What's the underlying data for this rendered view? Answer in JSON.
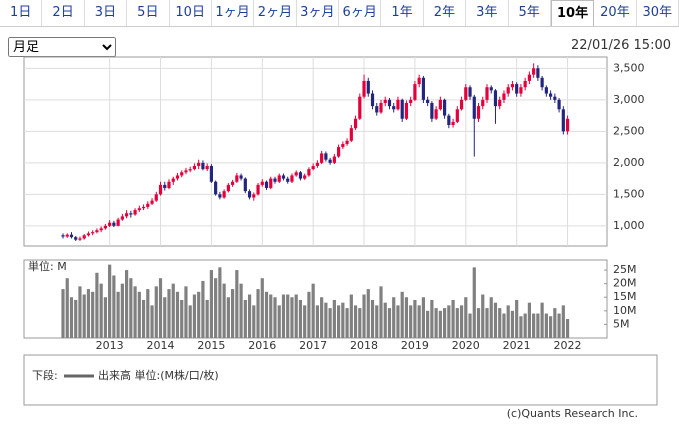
{
  "tabs": [
    "1日",
    "2日",
    "3日",
    "5日",
    "10日",
    "1ヶ月",
    "2ヶ月",
    "3ヶ月",
    "6ヶ月",
    "1年",
    "2年",
    "3年",
    "5年",
    "10年",
    "20年",
    "30年"
  ],
  "selected_tab": 13,
  "period_select": "月足",
  "timestamp": "22/01/26 15:00",
  "legend": {
    "prefix": "下段:",
    "label": "出来高 単位:(M株/口/枚)"
  },
  "copyright": "(c)Quants Research Inc.",
  "chart_data": [
    {
      "type": "candlestick",
      "up_color": "#e4003a",
      "down_color": "#23267e",
      "grid": true,
      "ylim": [
        680,
        3680
      ],
      "yticks": [
        {
          "value": 1000,
          "label": "1,000"
        },
        {
          "value": 1500,
          "label": "1,500"
        },
        {
          "value": 2000,
          "label": "2,000"
        },
        {
          "value": 2500,
          "label": "2,500"
        },
        {
          "value": 3000,
          "label": "3,000"
        },
        {
          "value": 3500,
          "label": "3,500"
        }
      ],
      "ohlc": [
        [
          850,
          880,
          800,
          830
        ],
        [
          830,
          880,
          810,
          860
        ],
        [
          860,
          900,
          800,
          820
        ],
        [
          820,
          840,
          760,
          780
        ],
        [
          780,
          830,
          760,
          800
        ],
        [
          800,
          870,
          780,
          850
        ],
        [
          850,
          910,
          830,
          880
        ],
        [
          880,
          930,
          850,
          900
        ],
        [
          900,
          960,
          880,
          930
        ],
        [
          930,
          990,
          900,
          960
        ],
        [
          960,
          1030,
          940,
          1000
        ],
        [
          1000,
          1090,
          980,
          1050
        ],
        [
          1050,
          1080,
          980,
          1000
        ],
        [
          1000,
          1130,
          990,
          1100
        ],
        [
          1100,
          1190,
          1080,
          1150
        ],
        [
          1150,
          1250,
          1120,
          1200
        ],
        [
          1200,
          1240,
          1130,
          1180
        ],
        [
          1180,
          1280,
          1160,
          1250
        ],
        [
          1250,
          1320,
          1220,
          1280
        ],
        [
          1280,
          1340,
          1250,
          1300
        ],
        [
          1300,
          1390,
          1270,
          1350
        ],
        [
          1350,
          1440,
          1330,
          1400
        ],
        [
          1400,
          1540,
          1380,
          1500
        ],
        [
          1500,
          1700,
          1480,
          1650
        ],
        [
          1650,
          1700,
          1560,
          1600
        ],
        [
          1600,
          1740,
          1580,
          1700
        ],
        [
          1700,
          1780,
          1650,
          1750
        ],
        [
          1750,
          1840,
          1720,
          1800
        ],
        [
          1800,
          1880,
          1770,
          1850
        ],
        [
          1850,
          1920,
          1820,
          1880
        ],
        [
          1880,
          1940,
          1850,
          1900
        ],
        [
          1900,
          1990,
          1880,
          1950
        ],
        [
          1950,
          2050,
          1900,
          2000
        ],
        [
          2000,
          2040,
          1880,
          1900
        ],
        [
          1900,
          1990,
          1870,
          1950
        ],
        [
          1950,
          1980,
          1680,
          1700
        ],
        [
          1700,
          1720,
          1480,
          1500
        ],
        [
          1500,
          1540,
          1420,
          1450
        ],
        [
          1450,
          1580,
          1430,
          1550
        ],
        [
          1550,
          1680,
          1530,
          1650
        ],
        [
          1650,
          1730,
          1620,
          1700
        ],
        [
          1700,
          1840,
          1680,
          1800
        ],
        [
          1800,
          1830,
          1720,
          1750
        ],
        [
          1750,
          1770,
          1520,
          1550
        ],
        [
          1550,
          1580,
          1420,
          1450
        ],
        [
          1450,
          1530,
          1400,
          1500
        ],
        [
          1500,
          1680,
          1480,
          1650
        ],
        [
          1650,
          1740,
          1620,
          1700
        ],
        [
          1700,
          1720,
          1570,
          1600
        ],
        [
          1600,
          1780,
          1580,
          1750
        ],
        [
          1750,
          1780,
          1670,
          1700
        ],
        [
          1700,
          1830,
          1680,
          1800
        ],
        [
          1800,
          1830,
          1720,
          1750
        ],
        [
          1750,
          1780,
          1670,
          1700
        ],
        [
          1700,
          1830,
          1680,
          1800
        ],
        [
          1800,
          1880,
          1780,
          1850
        ],
        [
          1850,
          1870,
          1720,
          1750
        ],
        [
          1750,
          1830,
          1730,
          1800
        ],
        [
          1800,
          1930,
          1780,
          1900
        ],
        [
          1900,
          1990,
          1880,
          1950
        ],
        [
          1950,
          2040,
          1920,
          2000
        ],
        [
          2000,
          2190,
          1980,
          2150
        ],
        [
          2150,
          2180,
          2020,
          2050
        ],
        [
          2050,
          2080,
          1970,
          2000
        ],
        [
          2000,
          2140,
          1980,
          2100
        ],
        [
          2100,
          2290,
          2080,
          2250
        ],
        [
          2250,
          2340,
          2220,
          2300
        ],
        [
          2300,
          2390,
          2270,
          2350
        ],
        [
          2350,
          2600,
          2330,
          2550
        ],
        [
          2550,
          2750,
          2520,
          2700
        ],
        [
          2700,
          3100,
          2680,
          3050
        ],
        [
          3050,
          3400,
          3020,
          3300
        ],
        [
          3300,
          3350,
          3050,
          3100
        ],
        [
          3100,
          3150,
          2850,
          2900
        ],
        [
          2900,
          2950,
          2750,
          2800
        ],
        [
          2800,
          3000,
          2780,
          2950
        ],
        [
          2950,
          3050,
          2900,
          3000
        ],
        [
          3000,
          3030,
          2850,
          2900
        ],
        [
          2900,
          2950,
          2800,
          2850
        ],
        [
          2850,
          3050,
          2830,
          3000
        ],
        [
          3000,
          3020,
          2650,
          2700
        ],
        [
          2700,
          2990,
          2680,
          2950
        ],
        [
          2950,
          3050,
          2900,
          3000
        ],
        [
          3000,
          3300,
          2980,
          3250
        ],
        [
          3250,
          3400,
          3200,
          3350
        ],
        [
          3350,
          3380,
          2950,
          3000
        ],
        [
          3000,
          3050,
          2900,
          2950
        ],
        [
          2950,
          2980,
          2650,
          2700
        ],
        [
          2700,
          2900,
          2680,
          2850
        ],
        [
          2850,
          3050,
          2830,
          3000
        ],
        [
          3000,
          3020,
          2700,
          2750
        ],
        [
          2750,
          2780,
          2550,
          2600
        ],
        [
          2600,
          2700,
          2560,
          2650
        ],
        [
          2650,
          2900,
          2630,
          2850
        ],
        [
          2850,
          3050,
          2830,
          3000
        ],
        [
          3000,
          3250,
          2980,
          3200
        ],
        [
          3200,
          3230,
          3000,
          3050
        ],
        [
          3050,
          3080,
          2100,
          2700
        ],
        [
          2700,
          2950,
          2650,
          2900
        ],
        [
          2900,
          3050,
          2850,
          3000
        ],
        [
          3000,
          3250,
          2950,
          3200
        ],
        [
          3200,
          3230,
          3100,
          3150
        ],
        [
          3150,
          3170,
          2620,
          2900
        ],
        [
          2900,
          3050,
          2850,
          3000
        ],
        [
          3000,
          3150,
          2950,
          3100
        ],
        [
          3100,
          3250,
          3050,
          3200
        ],
        [
          3200,
          3300,
          3150,
          3250
        ],
        [
          3250,
          3280,
          3050,
          3100
        ],
        [
          3100,
          3250,
          3050,
          3200
        ],
        [
          3200,
          3350,
          3150,
          3300
        ],
        [
          3300,
          3450,
          3250,
          3400
        ],
        [
          3400,
          3580,
          3350,
          3500
        ],
        [
          3500,
          3550,
          3300,
          3350
        ],
        [
          3350,
          3380,
          3150,
          3200
        ],
        [
          3200,
          3230,
          3050,
          3100
        ],
        [
          3100,
          3150,
          3000,
          3050
        ],
        [
          3050,
          3100,
          2950,
          3000
        ],
        [
          3000,
          3030,
          2800,
          2850
        ],
        [
          2850,
          2900,
          2450,
          2500
        ],
        [
          2500,
          2750,
          2450,
          2700
        ]
      ]
    },
    {
      "type": "bar",
      "unit_label": "単位: M",
      "color": "#808080",
      "grid": false,
      "ylim": [
        0,
        28.7
      ],
      "yticks": [
        {
          "value": 5,
          "label": "5M"
        },
        {
          "value": 10,
          "label": "10M"
        },
        {
          "value": 15,
          "label": "15M"
        },
        {
          "value": 20,
          "label": "20M"
        },
        {
          "value": 25,
          "label": "25M"
        }
      ],
      "categories": [
        null,
        null,
        null,
        null,
        null,
        null,
        null,
        null,
        null,
        null,
        null,
        "2013",
        null,
        null,
        null,
        null,
        null,
        null,
        null,
        null,
        null,
        null,
        null,
        "2014",
        null,
        null,
        null,
        null,
        null,
        null,
        null,
        null,
        null,
        null,
        null,
        "2015",
        null,
        null,
        null,
        null,
        null,
        null,
        null,
        null,
        null,
        null,
        null,
        "2016",
        null,
        null,
        null,
        null,
        null,
        null,
        null,
        null,
        null,
        null,
        null,
        "2017",
        null,
        null,
        null,
        null,
        null,
        null,
        null,
        null,
        null,
        null,
        null,
        "2018",
        null,
        null,
        null,
        null,
        null,
        null,
        null,
        null,
        null,
        null,
        null,
        "2019",
        null,
        null,
        null,
        null,
        null,
        null,
        null,
        null,
        null,
        null,
        null,
        "2020",
        null,
        null,
        null,
        null,
        null,
        null,
        null,
        null,
        null,
        null,
        null,
        "2021",
        null,
        null,
        null,
        null,
        null,
        null,
        null,
        null,
        null,
        null,
        null,
        "2022"
      ],
      "values": [
        18,
        22,
        15,
        14,
        19,
        16,
        18,
        17,
        24,
        20,
        15,
        27,
        23,
        17,
        20,
        25,
        22,
        19,
        17,
        14,
        18,
        12,
        19,
        22,
        15,
        18,
        20,
        17,
        14,
        19,
        12,
        16,
        17,
        21,
        14,
        25,
        22,
        26,
        20,
        15,
        18,
        25,
        20,
        14,
        16,
        12,
        18,
        22,
        17,
        16,
        15,
        12,
        16,
        16,
        15,
        16,
        14,
        12,
        17,
        20,
        12,
        15,
        13,
        11,
        14,
        12,
        13,
        11,
        16,
        12,
        11,
        16,
        18,
        14,
        12,
        19,
        13,
        11,
        15,
        12,
        17,
        15,
        12,
        14,
        12,
        15,
        10,
        14,
        11,
        10,
        11,
        12,
        14,
        11,
        12,
        15,
        9,
        26,
        11,
        16,
        11,
        15,
        13,
        11,
        9,
        12,
        10,
        14,
        8,
        9,
        13,
        9,
        9,
        13,
        9,
        8,
        11,
        9,
        12,
        7
      ]
    }
  ]
}
